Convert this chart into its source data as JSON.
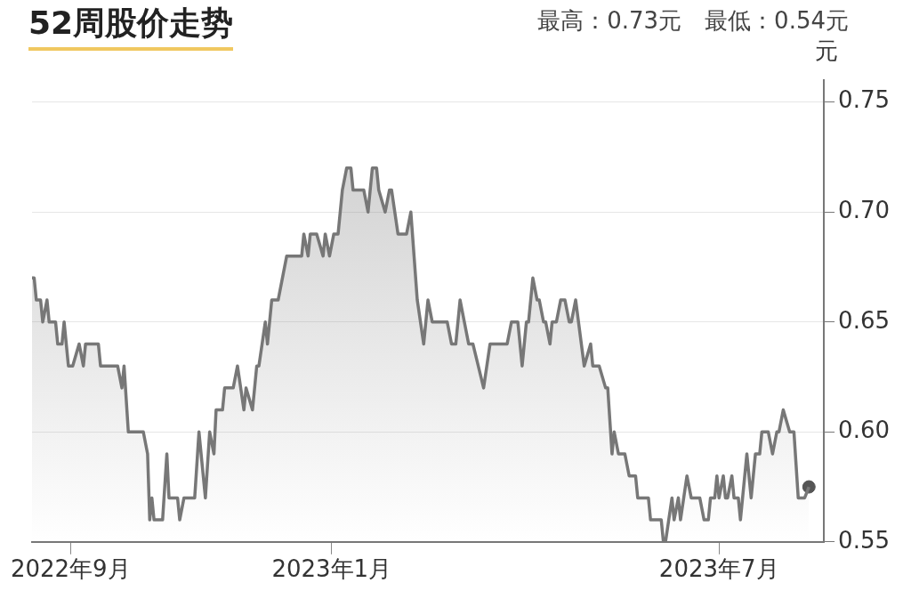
{
  "chart_data": {
    "type": "area",
    "title": "52周股价走势",
    "subtitle": "最高：0.73元　最低：0.54元",
    "ylabel": "元",
    "xlim": [
      "2022-08-14",
      "2023-08-19"
    ],
    "xticks": [
      {
        "value": "2022-09-01",
        "label": "2022年9月"
      },
      {
        "value": "2023-01-01",
        "label": "2023年1月"
      },
      {
        "value": "2023-07-01",
        "label": "2023年7月"
      }
    ],
    "ylim": [
      0.55,
      0.76
    ],
    "yticks": [
      0.55,
      {
        "value": 0.6,
        "label": "0.60"
      },
      0.65,
      {
        "value": 0.7,
        "label": "0.70"
      },
      0.75
    ],
    "grid": "y",
    "legend": false,
    "series": [
      {
        "color": "#777777",
        "marker": "none",
        "x": [
          "2022-08-14",
          "2022-08-15",
          "2022-08-16",
          "2022-08-18",
          "2022-08-19",
          "2022-08-21",
          "2022-08-22",
          "2022-08-25",
          "2022-08-26",
          "2022-08-28",
          "2022-08-29",
          "2022-08-31",
          "2022-09-02",
          "2022-09-05",
          "2022-09-07",
          "2022-09-08",
          "2022-09-14",
          "2022-09-15",
          "2022-09-23",
          "2022-09-25",
          "2022-09-26",
          "2022-09-28",
          "2022-09-30",
          "2022-10-05",
          "2022-10-07",
          "2022-10-08",
          "2022-10-09",
          "2022-10-10",
          "2022-10-14",
          "2022-10-16",
          "2022-10-17",
          "2022-10-21",
          "2022-10-22",
          "2022-10-24",
          "2022-10-29",
          "2022-10-31",
          "2022-11-03",
          "2022-11-05",
          "2022-11-07",
          "2022-11-08",
          "2022-11-11",
          "2022-11-12",
          "2022-11-16",
          "2022-11-18",
          "2022-11-21",
          "2022-11-22",
          "2022-11-25",
          "2022-11-27",
          "2022-11-28",
          "2022-12-01",
          "2022-12-02",
          "2022-12-04",
          "2022-12-07",
          "2022-12-11",
          "2022-12-18",
          "2022-12-19",
          "2022-12-21",
          "2022-12-22",
          "2022-12-25",
          "2022-12-28",
          "2022-12-29",
          "2022-12-31",
          "2023-01-02",
          "2023-01-04",
          "2023-01-06",
          "2023-01-08",
          "2023-01-10",
          "2023-01-11",
          "2023-01-16",
          "2023-01-18",
          "2023-01-20",
          "2023-01-22",
          "2023-01-23",
          "2023-01-26",
          "2023-01-28",
          "2023-01-29",
          "2023-02-01",
          "2023-02-05",
          "2023-02-07",
          "2023-02-10",
          "2023-02-13",
          "2023-02-15",
          "2023-02-17",
          "2023-02-24",
          "2023-02-26",
          "2023-02-28",
          "2023-03-02",
          "2023-03-04",
          "2023-03-06",
          "2023-03-08",
          "2023-03-13",
          "2023-03-16",
          "2023-03-24",
          "2023-03-26",
          "2023-03-29",
          "2023-03-31",
          "2023-04-02",
          "2023-04-03",
          "2023-04-05",
          "2023-04-07",
          "2023-04-08",
          "2023-04-10",
          "2023-04-11",
          "2023-04-13",
          "2023-04-14",
          "2023-04-16",
          "2023-04-18",
          "2023-04-20",
          "2023-04-22",
          "2023-04-23",
          "2023-04-25",
          "2023-04-29",
          "2023-05-02",
          "2023-05-03",
          "2023-05-06",
          "2023-05-09",
          "2023-05-10",
          "2023-05-12",
          "2023-05-13",
          "2023-05-15",
          "2023-05-18",
          "2023-05-20",
          "2023-05-23",
          "2023-05-24",
          "2023-05-29",
          "2023-05-30",
          "2023-06-04",
          "2023-06-05",
          "2023-06-06",
          "2023-06-09",
          "2023-06-10",
          "2023-06-12",
          "2023-06-13",
          "2023-06-16",
          "2023-06-18",
          "2023-06-22",
          "2023-06-24",
          "2023-06-26",
          "2023-06-27",
          "2023-06-29",
          "2023-06-30",
          "2023-07-01",
          "2023-07-03",
          "2023-07-04",
          "2023-07-05",
          "2023-07-07",
          "2023-07-08",
          "2023-07-10",
          "2023-07-11",
          "2023-07-14",
          "2023-07-16",
          "2023-07-18",
          "2023-07-20",
          "2023-07-21",
          "2023-07-24",
          "2023-07-26",
          "2023-07-28",
          "2023-07-29",
          "2023-07-31",
          "2023-08-03",
          "2023-08-05",
          "2023-08-07",
          "2023-08-10",
          "2023-08-12"
        ],
        "values": [
          0.67,
          0.67,
          0.66,
          0.66,
          0.65,
          0.66,
          0.65,
          0.65,
          0.64,
          0.64,
          0.65,
          0.63,
          0.63,
          0.64,
          0.63,
          0.64,
          0.64,
          0.63,
          0.63,
          0.62,
          0.63,
          0.6,
          0.6,
          0.6,
          0.59,
          0.56,
          0.57,
          0.56,
          0.56,
          0.59,
          0.57,
          0.57,
          0.56,
          0.57,
          0.57,
          0.6,
          0.57,
          0.6,
          0.59,
          0.61,
          0.61,
          0.62,
          0.62,
          0.63,
          0.61,
          0.62,
          0.61,
          0.63,
          0.63,
          0.65,
          0.64,
          0.66,
          0.66,
          0.68,
          0.68,
          0.69,
          0.68,
          0.69,
          0.69,
          0.68,
          0.69,
          0.68,
          0.69,
          0.69,
          0.71,
          0.72,
          0.72,
          0.71,
          0.71,
          0.7,
          0.72,
          0.72,
          0.71,
          0.7,
          0.71,
          0.71,
          0.69,
          0.69,
          0.7,
          0.66,
          0.64,
          0.66,
          0.65,
          0.65,
          0.64,
          0.64,
          0.66,
          0.65,
          0.64,
          0.64,
          0.62,
          0.64,
          0.64,
          0.65,
          0.65,
          0.63,
          0.65,
          0.65,
          0.67,
          0.66,
          0.66,
          0.65,
          0.65,
          0.64,
          0.65,
          0.65,
          0.66,
          0.66,
          0.65,
          0.65,
          0.66,
          0.63,
          0.64,
          0.63,
          0.63,
          0.62,
          0.62,
          0.59,
          0.6,
          0.59,
          0.59,
          0.58,
          0.58,
          0.57,
          0.57,
          0.56,
          0.56,
          0.55,
          0.55,
          0.57,
          0.56,
          0.57,
          0.56,
          0.58,
          0.57,
          0.57,
          0.56,
          0.56,
          0.57,
          0.57,
          0.58,
          0.57,
          0.58,
          0.57,
          0.57,
          0.58,
          0.57,
          0.57,
          0.56,
          0.59,
          0.57,
          0.59,
          0.59,
          0.6,
          0.6,
          0.59,
          0.6,
          0.6,
          0.61,
          0.6,
          0.6,
          0.57,
          0.57,
          0.575
        ]
      },
      {
        "type": "scatter",
        "color": "#555555",
        "marker": "circle",
        "x": [
          "2023-08-12"
        ],
        "values": [
          0.575
        ]
      }
    ]
  }
}
